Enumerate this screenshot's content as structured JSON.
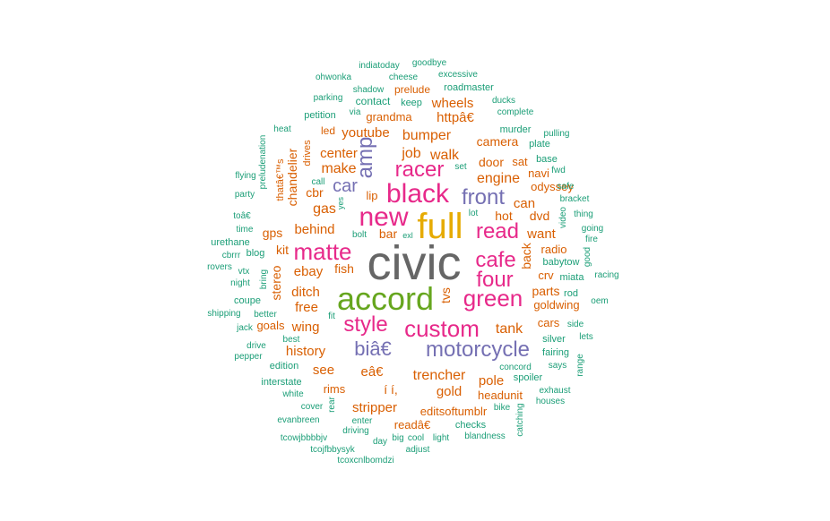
{
  "chart_data": {
    "type": "wordcloud",
    "colors": {
      "1": "#1b9e77",
      "2": "#d95f02",
      "3": "#7570b3",
      "4": "#e7298a",
      "5": "#66a61e",
      "6": "#e6ab02",
      "7": "#666666"
    },
    "words": [
      {
        "text": "civic",
        "freq": 7
      },
      {
        "text": "accord",
        "freq": 5
      },
      {
        "text": "full",
        "freq": 6
      },
      {
        "text": "new",
        "freq": 4
      },
      {
        "text": "black",
        "freq": 4
      },
      {
        "text": "green",
        "freq": 4
      },
      {
        "text": "custom",
        "freq": 4
      },
      {
        "text": "matte",
        "freq": 4
      },
      {
        "text": "style",
        "freq": 4
      },
      {
        "text": "four",
        "freq": 4
      },
      {
        "text": "cafe",
        "freq": 4
      },
      {
        "text": "racer",
        "freq": 4
      },
      {
        "text": "read",
        "freq": 4
      },
      {
        "text": "motorcycle",
        "freq": 3
      },
      {
        "text": "front",
        "freq": 3
      },
      {
        "text": "amp",
        "freq": 3
      },
      {
        "text": "biâ€",
        "freq": 3
      },
      {
        "text": "car",
        "freq": 3
      },
      {
        "text": "engine",
        "freq": 2
      },
      {
        "text": "walk",
        "freq": 2
      },
      {
        "text": "job",
        "freq": 2
      },
      {
        "text": "trencher",
        "freq": 2
      },
      {
        "text": "tank",
        "freq": 2
      },
      {
        "text": "bumper",
        "freq": 2
      },
      {
        "text": "gas",
        "freq": 2
      },
      {
        "text": "make",
        "freq": 2
      },
      {
        "text": "youtube",
        "freq": 2
      },
      {
        "text": "center",
        "freq": 2
      },
      {
        "text": "behind",
        "freq": 2
      },
      {
        "text": "ebay",
        "freq": 2
      },
      {
        "text": "ditch",
        "freq": 2
      },
      {
        "text": "free",
        "freq": 2
      },
      {
        "text": "wing",
        "freq": 2
      },
      {
        "text": "history",
        "freq": 2
      },
      {
        "text": "see",
        "freq": 2
      },
      {
        "text": "eâ€",
        "freq": 2
      },
      {
        "text": "gold",
        "freq": 2
      },
      {
        "text": "pole",
        "freq": 2
      },
      {
        "text": "stripper",
        "freq": 2
      },
      {
        "text": "wheels",
        "freq": 2
      },
      {
        "text": "httpâ€",
        "freq": 2
      },
      {
        "text": "door",
        "freq": 2
      },
      {
        "text": "camera",
        "freq": 2
      },
      {
        "text": "can",
        "freq": 2
      },
      {
        "text": "want",
        "freq": 2
      },
      {
        "text": "dvd",
        "freq": 2
      },
      {
        "text": "hot",
        "freq": 2
      },
      {
        "text": "parts",
        "freq": 2
      },
      {
        "text": "back",
        "freq": 2
      },
      {
        "text": "tvs",
        "freq": 2
      },
      {
        "text": "stereo",
        "freq": 2
      },
      {
        "text": "chandelier",
        "freq": 2
      },
      {
        "text": "cbr",
        "freq": 2
      },
      {
        "text": "gps",
        "freq": 2
      },
      {
        "text": "kit",
        "freq": 2
      },
      {
        "text": "fish",
        "freq": 2
      },
      {
        "text": "bar",
        "freq": 2
      },
      {
        "text": "lip",
        "freq": 2
      },
      {
        "text": "grandma",
        "freq": 2
      },
      {
        "text": "í í,",
        "freq": 2
      },
      {
        "text": "headunit",
        "freq": 2
      },
      {
        "text": "rims",
        "freq": 2
      },
      {
        "text": "goals",
        "freq": 2
      },
      {
        "text": "cars",
        "freq": 2
      },
      {
        "text": "goldwing",
        "freq": 2
      },
      {
        "text": "crv",
        "freq": 2
      },
      {
        "text": "radio",
        "freq": 2
      },
      {
        "text": "odyssey",
        "freq": 2
      },
      {
        "text": "navi",
        "freq": 2
      },
      {
        "text": "sat",
        "freq": 2
      },
      {
        "text": "editsoftumblr",
        "freq": 2
      },
      {
        "text": "readâ€",
        "freq": 2
      },
      {
        "text": "prelude",
        "freq": 2
      },
      {
        "text": "led",
        "freq": 2
      },
      {
        "text": "drives",
        "freq": 2
      },
      {
        "text": "thatâ€™s",
        "freq": 2
      },
      {
        "text": "contact",
        "freq": 1
      },
      {
        "text": "keep",
        "freq": 1
      },
      {
        "text": "roadmaster",
        "freq": 1
      },
      {
        "text": "ohwonka",
        "freq": 1
      },
      {
        "text": "cheese",
        "freq": 1
      },
      {
        "text": "excessive",
        "freq": 1
      },
      {
        "text": "indiatoday",
        "freq": 1
      },
      {
        "text": "goodbye",
        "freq": 1
      },
      {
        "text": "shadow",
        "freq": 1
      },
      {
        "text": "parking",
        "freq": 1
      },
      {
        "text": "via",
        "freq": 1
      },
      {
        "text": "ducks",
        "freq": 1
      },
      {
        "text": "complete",
        "freq": 1
      },
      {
        "text": "petition",
        "freq": 1
      },
      {
        "text": "heat",
        "freq": 1
      },
      {
        "text": "murder",
        "freq": 1
      },
      {
        "text": "pulling",
        "freq": 1
      },
      {
        "text": "plate",
        "freq": 1
      },
      {
        "text": "base",
        "freq": 1
      },
      {
        "text": "fwd",
        "freq": 1
      },
      {
        "text": "preludenation",
        "freq": 1
      },
      {
        "text": "set",
        "freq": 1
      },
      {
        "text": "call",
        "freq": 1
      },
      {
        "text": "flying",
        "freq": 1
      },
      {
        "text": "party",
        "freq": 1
      },
      {
        "text": "safe",
        "freq": 1
      },
      {
        "text": "bracket",
        "freq": 1
      },
      {
        "text": "yes",
        "freq": 1
      },
      {
        "text": "lot",
        "freq": 1
      },
      {
        "text": "toâ€",
        "freq": 1
      },
      {
        "text": "thing",
        "freq": 1
      },
      {
        "text": "video",
        "freq": 1
      },
      {
        "text": "time",
        "freq": 1
      },
      {
        "text": "going",
        "freq": 1
      },
      {
        "text": "bolt",
        "freq": 1
      },
      {
        "text": "exl",
        "freq": 1
      },
      {
        "text": "fire",
        "freq": 1
      },
      {
        "text": "urethane",
        "freq": 1
      },
      {
        "text": "good",
        "freq": 1
      },
      {
        "text": "cbrrr",
        "freq": 1
      },
      {
        "text": "blog",
        "freq": 1
      },
      {
        "text": "babytow",
        "freq": 1
      },
      {
        "text": "rovers",
        "freq": 1
      },
      {
        "text": "vtx",
        "freq": 1
      },
      {
        "text": "racing",
        "freq": 1
      },
      {
        "text": "night",
        "freq": 1
      },
      {
        "text": "bring",
        "freq": 1
      },
      {
        "text": "miata",
        "freq": 1
      },
      {
        "text": "rod",
        "freq": 1
      },
      {
        "text": "coupe",
        "freq": 1
      },
      {
        "text": "oem",
        "freq": 1
      },
      {
        "text": "shipping",
        "freq": 1
      },
      {
        "text": "better",
        "freq": 1
      },
      {
        "text": "fit",
        "freq": 1
      },
      {
        "text": "side",
        "freq": 1
      },
      {
        "text": "jack",
        "freq": 1
      },
      {
        "text": "lets",
        "freq": 1
      },
      {
        "text": "best",
        "freq": 1
      },
      {
        "text": "silver",
        "freq": 1
      },
      {
        "text": "drive",
        "freq": 1
      },
      {
        "text": "fairing",
        "freq": 1
      },
      {
        "text": "pepper",
        "freq": 1
      },
      {
        "text": "edition",
        "freq": 1
      },
      {
        "text": "concord",
        "freq": 1
      },
      {
        "text": "says",
        "freq": 1
      },
      {
        "text": "range",
        "freq": 1
      },
      {
        "text": "interstate",
        "freq": 1
      },
      {
        "text": "spoiler",
        "freq": 1
      },
      {
        "text": "white",
        "freq": 1
      },
      {
        "text": "exhaust",
        "freq": 1
      },
      {
        "text": "houses",
        "freq": 1
      },
      {
        "text": "rear",
        "freq": 1
      },
      {
        "text": "cover",
        "freq": 1
      },
      {
        "text": "bike",
        "freq": 1
      },
      {
        "text": "evanbreen",
        "freq": 1
      },
      {
        "text": "enter",
        "freq": 1
      },
      {
        "text": "catching",
        "freq": 1
      },
      {
        "text": "checks",
        "freq": 1
      },
      {
        "text": "driving",
        "freq": 1
      },
      {
        "text": "tcowjbbbbjv",
        "freq": 1
      },
      {
        "text": "day",
        "freq": 1
      },
      {
        "text": "big",
        "freq": 1
      },
      {
        "text": "cool",
        "freq": 1
      },
      {
        "text": "light",
        "freq": 1
      },
      {
        "text": "blandness",
        "freq": 1
      },
      {
        "text": "tcojfbbysyk",
        "freq": 1
      },
      {
        "text": "adjust",
        "freq": 1
      },
      {
        "text": "tcoxcnlbomdzi",
        "freq": 1
      }
    ]
  }
}
